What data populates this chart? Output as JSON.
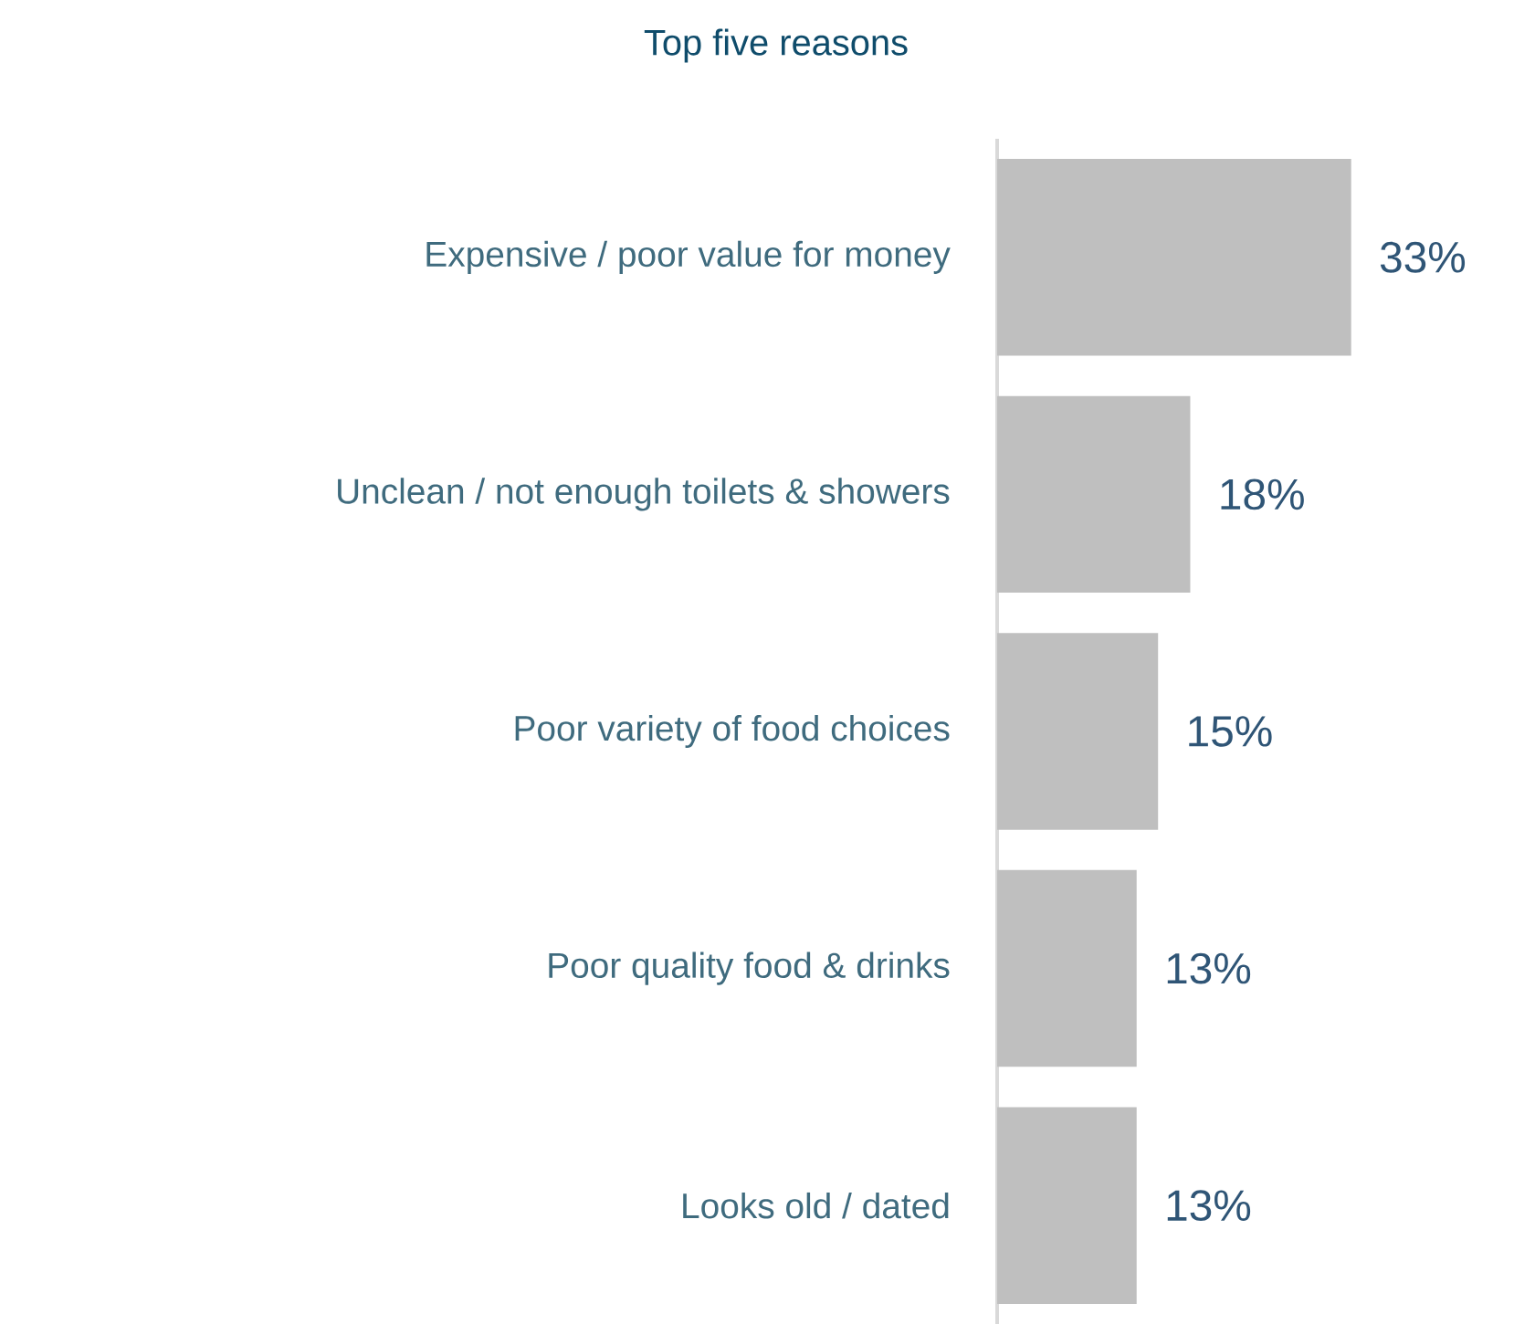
{
  "chart_data": {
    "type": "bar",
    "orientation": "horizontal",
    "title": "Top five reasons",
    "categories": [
      "Expensive / poor value for money",
      "Unclean / not enough toilets & showers",
      "Poor variety of food choices",
      "Poor quality food & drinks",
      "Looks old / dated"
    ],
    "values": [
      33,
      18,
      15,
      13,
      13
    ],
    "value_labels": [
      "33%",
      "18%",
      "15%",
      "13%",
      "13%"
    ],
    "color": "#bfbfbf"
  }
}
